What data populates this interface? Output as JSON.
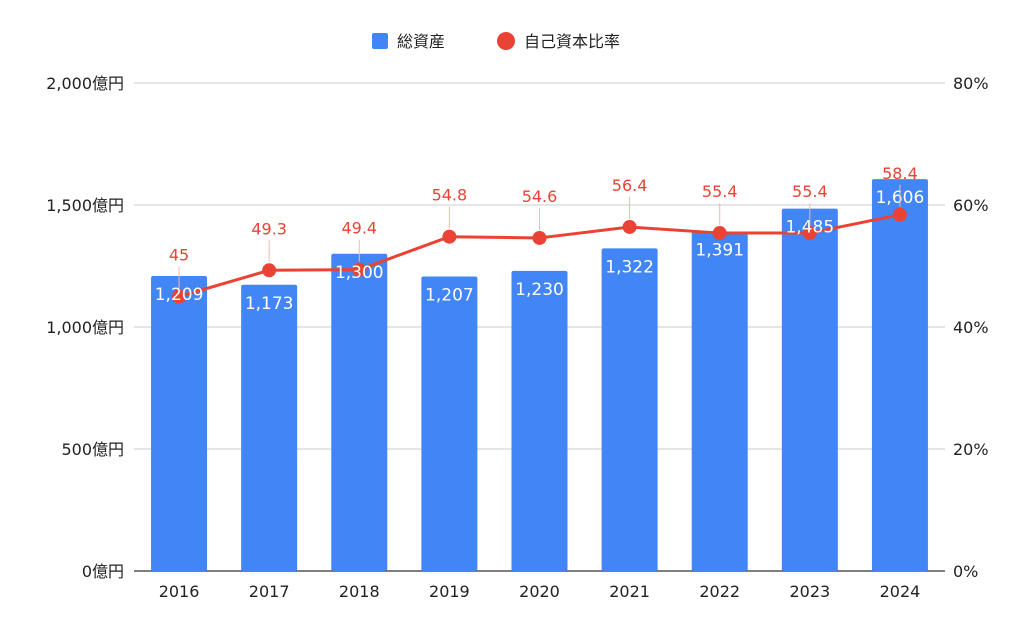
{
  "chart_data": {
    "type": "bar",
    "categories": [
      "2016",
      "2017",
      "2018",
      "2019",
      "2020",
      "2021",
      "2022",
      "2023",
      "2024"
    ],
    "series": [
      {
        "name": "総資産",
        "kind": "bar",
        "axis": "left",
        "color": "#4285f4",
        "values": [
          1209,
          1173,
          1300,
          1207,
          1230,
          1322,
          1391,
          1485,
          1606
        ],
        "labels": [
          "1,209",
          "1,173",
          "1,300",
          "1,207",
          "1,230",
          "1,322",
          "1,391",
          "1,485",
          "1,606"
        ]
      },
      {
        "name": "自己資本比率",
        "kind": "line",
        "axis": "right",
        "color": "#ea4335",
        "values": [
          45,
          49.3,
          49.4,
          54.8,
          54.6,
          56.4,
          55.4,
          55.4,
          58.4
        ],
        "labels": [
          "45",
          "49.3",
          "49.4",
          "54.8",
          "54.6",
          "56.4",
          "55.4",
          "55.4",
          "58.4"
        ]
      }
    ],
    "left_axis": {
      "range": [
        0,
        2000
      ],
      "ticks": [
        0,
        500,
        1000,
        1500,
        2000
      ],
      "tick_labels": [
        "0億円",
        "500億円",
        "1,000億円",
        "1,500億円",
        "2,000億円"
      ]
    },
    "right_axis": {
      "range": [
        0,
        80
      ],
      "ticks": [
        0,
        20,
        40,
        60,
        80
      ],
      "tick_labels": [
        "0%",
        "20%",
        "40%",
        "60%",
        "80%"
      ]
    },
    "grid": true,
    "legend": "top-center",
    "label_color": "#ffffff",
    "line_label_color": "#ea4335",
    "grid_color": "#cccccc",
    "axis_color": "#333333"
  }
}
